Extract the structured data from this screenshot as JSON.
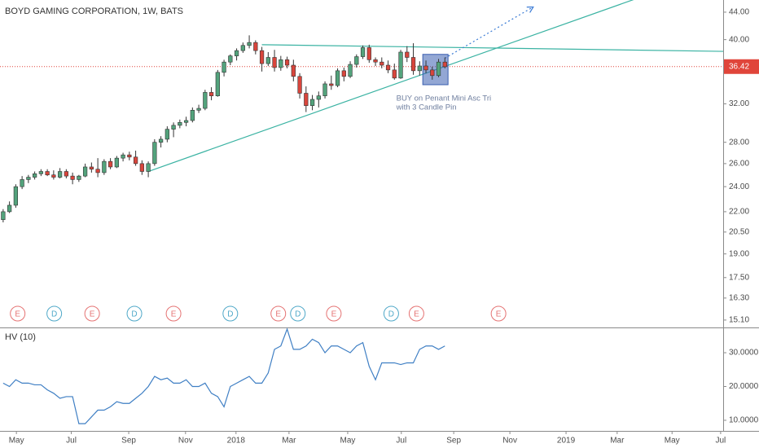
{
  "chart_data": [
    {
      "type": "candlestick",
      "title": "BOYD GAMING CORPORATION, 1W, BATS",
      "log_scale": true,
      "grid": false,
      "up_color": "#53a37c",
      "down_color": "#d9453c",
      "x": [
        0,
        1,
        2,
        3,
        4,
        5,
        6,
        7,
        8,
        9,
        10,
        11,
        12,
        13,
        14,
        15,
        16,
        17,
        18,
        19,
        20,
        21,
        22,
        23,
        24,
        25,
        26,
        27,
        28,
        29,
        30,
        31,
        32,
        33,
        34,
        35,
        36,
        37,
        38,
        39,
        40,
        41,
        42,
        43,
        44,
        45,
        46,
        47,
        48,
        49,
        50,
        51,
        52,
        53,
        54,
        55,
        56,
        57,
        58,
        59,
        60,
        61,
        62,
        63,
        64,
        65,
        66,
        67,
        68,
        69,
        70
      ],
      "candles": [
        [
          21.4,
          22.2,
          21.2,
          22.0
        ],
        [
          22.0,
          22.8,
          21.9,
          22.5
        ],
        [
          22.5,
          24.2,
          22.3,
          24.0
        ],
        [
          24.0,
          24.9,
          23.8,
          24.6
        ],
        [
          24.6,
          25.0,
          24.3,
          24.8
        ],
        [
          24.8,
          25.3,
          24.6,
          25.1
        ],
        [
          25.1,
          25.5,
          24.9,
          25.3
        ],
        [
          25.3,
          25.5,
          24.9,
          25.0
        ],
        [
          25.0,
          25.4,
          24.6,
          24.8
        ],
        [
          24.8,
          25.6,
          24.7,
          25.3
        ],
        [
          25.3,
          25.5,
          24.7,
          24.9
        ],
        [
          24.9,
          25.2,
          24.2,
          24.6
        ],
        [
          24.6,
          25.0,
          24.4,
          24.9
        ],
        [
          24.9,
          26.0,
          24.8,
          25.7
        ],
        [
          25.7,
          26.1,
          25.2,
          25.5
        ],
        [
          25.5,
          26.5,
          24.8,
          25.2
        ],
        [
          25.2,
          26.4,
          25.0,
          26.2
        ],
        [
          26.2,
          26.5,
          25.5,
          25.7
        ],
        [
          25.7,
          26.7,
          25.6,
          26.5
        ],
        [
          26.5,
          27.0,
          26.2,
          26.8
        ],
        [
          26.8,
          27.1,
          26.3,
          26.6
        ],
        [
          26.6,
          27.2,
          25.8,
          26.0
        ],
        [
          26.0,
          26.3,
          25.0,
          25.3
        ],
        [
          25.3,
          26.2,
          24.8,
          26.0
        ],
        [
          26.0,
          28.3,
          25.8,
          28.0
        ],
        [
          28.0,
          28.6,
          27.5,
          28.3
        ],
        [
          28.3,
          29.6,
          28.0,
          29.3
        ],
        [
          29.3,
          30.0,
          28.5,
          29.7
        ],
        [
          29.7,
          30.3,
          29.4,
          30.0
        ],
        [
          30.0,
          30.6,
          29.6,
          30.2
        ],
        [
          30.2,
          31.6,
          30.0,
          31.3
        ],
        [
          31.3,
          31.9,
          31.0,
          31.5
        ],
        [
          31.5,
          33.6,
          31.3,
          33.3
        ],
        [
          33.3,
          33.9,
          32.4,
          32.9
        ],
        [
          32.9,
          36.0,
          32.8,
          35.7
        ],
        [
          35.7,
          37.3,
          35.2,
          37.0
        ],
        [
          37.0,
          38.0,
          36.6,
          37.8
        ],
        [
          37.8,
          38.8,
          37.2,
          38.5
        ],
        [
          38.5,
          39.6,
          38.2,
          39.2
        ],
        [
          39.2,
          40.6,
          38.8,
          39.6
        ],
        [
          39.6,
          39.9,
          38.0,
          38.5
        ],
        [
          38.5,
          39.0,
          35.8,
          36.8
        ],
        [
          36.8,
          38.3,
          36.5,
          37.6
        ],
        [
          37.6,
          38.6,
          35.8,
          36.3
        ],
        [
          36.3,
          37.8,
          35.9,
          37.3
        ],
        [
          37.3,
          37.7,
          36.2,
          36.6
        ],
        [
          36.6,
          37.3,
          34.6,
          35.2
        ],
        [
          35.2,
          35.6,
          32.6,
          33.2
        ],
        [
          33.2,
          34.0,
          31.1,
          31.8
        ],
        [
          31.8,
          33.0,
          31.3,
          32.5
        ],
        [
          32.5,
          33.4,
          31.6,
          32.9
        ],
        [
          32.9,
          34.6,
          32.6,
          34.3
        ],
        [
          34.3,
          35.3,
          33.6,
          34.1
        ],
        [
          34.1,
          36.2,
          33.9,
          35.9
        ],
        [
          35.9,
          36.3,
          34.6,
          35.2
        ],
        [
          35.2,
          37.1,
          35.0,
          36.7
        ],
        [
          36.7,
          38.0,
          36.3,
          37.7
        ],
        [
          37.7,
          39.2,
          37.4,
          38.9
        ],
        [
          38.9,
          39.3,
          36.9,
          37.3
        ],
        [
          37.3,
          37.6,
          36.5,
          37.0
        ],
        [
          37.0,
          37.6,
          36.2,
          36.6
        ],
        [
          36.6,
          37.2,
          35.6,
          36.0
        ],
        [
          36.0,
          36.8,
          34.8,
          35.0
        ],
        [
          35.0,
          38.6,
          34.9,
          38.3
        ],
        [
          38.3,
          39.1,
          37.0,
          37.6
        ],
        [
          37.6,
          39.5,
          35.4,
          35.9
        ],
        [
          35.9,
          37.1,
          35.3,
          36.5
        ],
        [
          36.5,
          37.2,
          35.6,
          36.0
        ],
        [
          36.0,
          36.4,
          34.8,
          35.3
        ],
        [
          35.3,
          37.4,
          35.1,
          37.0
        ],
        [
          37.0,
          37.6,
          36.2,
          36.4
        ]
      ],
      "xlim": [
        -0.5,
        114.1
      ],
      "ylim": [
        14.8,
        45.9
      ],
      "yticks": [
        {
          "value": 44,
          "label": "44.00"
        },
        {
          "value": 40,
          "label": "40.00"
        },
        {
          "value": 32,
          "label": "32.00"
        },
        {
          "value": 28,
          "label": "28.00"
        },
        {
          "value": 26,
          "label": "26.00"
        },
        {
          "value": 24,
          "label": "24.00"
        },
        {
          "value": 22,
          "label": "22.00"
        },
        {
          "value": 20.5,
          "label": "20.50"
        },
        {
          "value": 19,
          "label": "19.00"
        },
        {
          "value": 17.5,
          "label": "17.50"
        },
        {
          "value": 16.3,
          "label": "16.30"
        },
        {
          "value": 15.1,
          "label": "15.10"
        }
      ],
      "last_price": 36.42,
      "last_price_color": "#e0453a",
      "events": [
        {
          "label": "E",
          "x": 2.3,
          "color": "#e57373"
        },
        {
          "label": "D",
          "x": 8.1,
          "color": "#4fa8c8"
        },
        {
          "label": "E",
          "x": 14.1,
          "color": "#e57373"
        },
        {
          "label": "D",
          "x": 20.8,
          "color": "#4fa8c8"
        },
        {
          "label": "E",
          "x": 27,
          "color": "#e57373"
        },
        {
          "label": "D",
          "x": 36,
          "color": "#4fa8c8"
        },
        {
          "label": "E",
          "x": 43.6,
          "color": "#e57373"
        },
        {
          "label": "D",
          "x": 46.7,
          "color": "#4fa8c8"
        },
        {
          "label": "E",
          "x": 52.4,
          "color": "#e57373"
        },
        {
          "label": "D",
          "x": 61.5,
          "color": "#4fa8c8"
        },
        {
          "label": "E",
          "x": 65.5,
          "color": "#e57373"
        },
        {
          "label": "E",
          "x": 78.5,
          "color": "#e57373"
        }
      ],
      "drawings": [
        {
          "kind": "line",
          "color": "#3bb3a3",
          "points": [
            [
              41,
              39.3
            ],
            [
              114.1,
              38.4
            ]
          ]
        },
        {
          "kind": "line",
          "color": "#3bb3a3",
          "points": [
            [
              23,
              25.3
            ],
            [
              100,
              46
            ]
          ]
        },
        {
          "kind": "arrow",
          "color": "#3a7bd5",
          "points": [
            [
              70,
              37.5
            ],
            [
              84,
              44.8
            ]
          ]
        },
        {
          "kind": "rect",
          "color": "#3a5fb0",
          "points": [
            [
              66.5,
              34.2
            ],
            [
              70.5,
              38
            ]
          ]
        }
      ],
      "annotation": {
        "x": 62.3,
        "price": 32.6,
        "color": "#6f7f9f",
        "lines": [
          "BUY on Penant Mini Asc Tri",
          "with 3 Candle Pin"
        ]
      }
    },
    {
      "type": "line",
      "title": "HV (10)",
      "color": "#3f7fc4",
      "x": [
        0,
        1,
        2,
        3,
        4,
        5,
        6,
        7,
        8,
        9,
        10,
        11,
        12,
        13,
        14,
        15,
        16,
        17,
        18,
        19,
        20,
        21,
        22,
        23,
        24,
        25,
        26,
        27,
        28,
        29,
        30,
        31,
        32,
        33,
        34,
        35,
        36,
        37,
        38,
        39,
        40,
        41,
        42,
        43,
        44,
        45,
        46,
        47,
        48,
        49,
        50,
        51,
        52,
        53,
        54,
        55,
        56,
        57,
        58,
        59,
        60,
        61,
        62,
        63,
        64,
        65,
        66,
        67,
        68,
        69,
        70
      ],
      "values": [
        21,
        20,
        22,
        21,
        21,
        20.5,
        20.5,
        19,
        18,
        16.5,
        17,
        17,
        9,
        9,
        11,
        13,
        13,
        14,
        15.5,
        15,
        15,
        16.5,
        18,
        20,
        23,
        22,
        22.5,
        21,
        21,
        22,
        20,
        20,
        21,
        18,
        17,
        14,
        20,
        21,
        22,
        23,
        21,
        21,
        24,
        31,
        32,
        37,
        31,
        31,
        32,
        34,
        33,
        30,
        32,
        32,
        31,
        30,
        32,
        33,
        26,
        22,
        27,
        27,
        27,
        26.5,
        27,
        27,
        31,
        32,
        32,
        31,
        32
      ],
      "xlim": [
        -0.5,
        114.1
      ],
      "ylim": [
        7.1,
        37
      ],
      "yticks": [
        {
          "value": 30,
          "label": "30.0000"
        },
        {
          "value": 20,
          "label": "20.0000"
        },
        {
          "value": 10,
          "label": "10.0000"
        }
      ],
      "xticks": [
        {
          "value": 2.1,
          "label": "May"
        },
        {
          "value": 10.8,
          "label": "Jul"
        },
        {
          "value": 19.9,
          "label": "Sep"
        },
        {
          "value": 28.9,
          "label": "Nov"
        },
        {
          "value": 36.9,
          "label": "2018"
        },
        {
          "value": 45.3,
          "label": "Mar"
        },
        {
          "value": 54.6,
          "label": "May"
        },
        {
          "value": 63.1,
          "label": "Jul"
        },
        {
          "value": 71.4,
          "label": "Sep"
        },
        {
          "value": 80.3,
          "label": "Nov"
        },
        {
          "value": 89.2,
          "label": "2019"
        },
        {
          "value": 97.3,
          "label": "Mar"
        },
        {
          "value": 106,
          "label": "May"
        },
        {
          "value": 113.7,
          "label": "Jul"
        }
      ]
    }
  ]
}
